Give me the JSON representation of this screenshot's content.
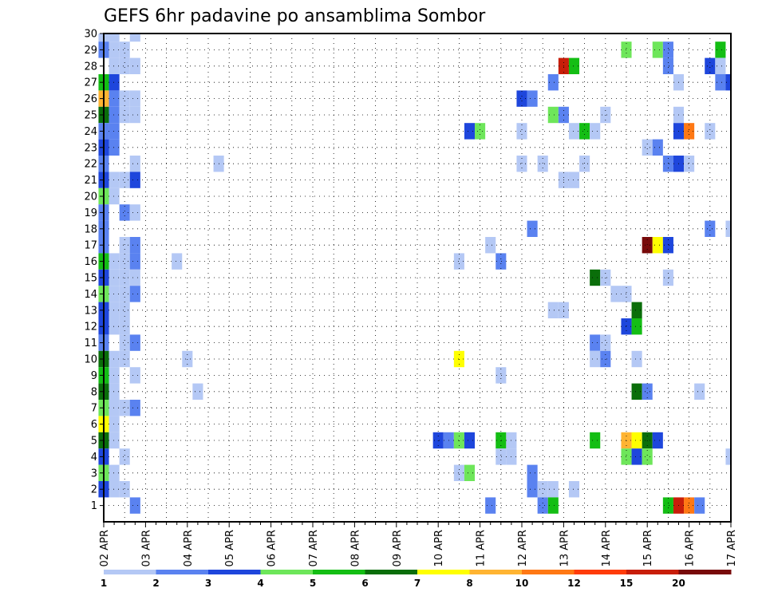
{
  "chart_data": {
    "type": "heatmap",
    "title": "GEFS 6hr padavine po ansamblima Sombor",
    "xlabel": "",
    "ylabel": "",
    "x_ticks": [
      "02 APR",
      "03 APR",
      "04 APR",
      "05 APR",
      "06 APR",
      "07 APR",
      "08 APR",
      "09 APR",
      "10 APR",
      "11 APR",
      "12 APR",
      "13 APR",
      "14 APR",
      "15 APR",
      "16 APR",
      "17 APR"
    ],
    "y_ticks": [
      "1",
      "2",
      "3",
      "4",
      "5",
      "6",
      "7",
      "8",
      "9",
      "10",
      "11",
      "12",
      "13",
      "14",
      "15",
      "16",
      "17",
      "18",
      "19",
      "20",
      "21",
      "22",
      "23",
      "24",
      "25",
      "26",
      "27",
      "28",
      "29",
      "30"
    ],
    "x_unit": "6-hour step from 02 APR",
    "xlim": [
      0,
      60
    ],
    "ylim": [
      0,
      30
    ],
    "grid": true,
    "colorbar": {
      "labels": [
        "1",
        "2",
        "3",
        "4",
        "5",
        "6",
        "7",
        "8",
        "10",
        "12",
        "15",
        "20"
      ],
      "colors": [
        "#b4c8f5",
        "#5a82f0",
        "#1e46dc",
        "#6ee65a",
        "#14be14",
        "#0a6e0a",
        "#ffff00",
        "#ffb432",
        "#ff7814",
        "#ff3c0a",
        "#c81e0a",
        "#780a0a"
      ]
    },
    "cells": [
      [
        0,
        30,
        1
      ],
      [
        1,
        30,
        1
      ],
      [
        3,
        30,
        1
      ],
      [
        0,
        29,
        2
      ],
      [
        1,
        29,
        1
      ],
      [
        2,
        29,
        1
      ],
      [
        50,
        29,
        4
      ],
      [
        53,
        29,
        4
      ],
      [
        54,
        29,
        2
      ],
      [
        59,
        29,
        5
      ],
      [
        1,
        28,
        1
      ],
      [
        2,
        28,
        1
      ],
      [
        3,
        28,
        1
      ],
      [
        44,
        28,
        11
      ],
      [
        45,
        28,
        5
      ],
      [
        54,
        28,
        2
      ],
      [
        58,
        28,
        3
      ],
      [
        59,
        28,
        1
      ],
      [
        0,
        27,
        5
      ],
      [
        1,
        27,
        3
      ],
      [
        43,
        27,
        2
      ],
      [
        55,
        27,
        1
      ],
      [
        59,
        27,
        2
      ],
      [
        60,
        27,
        3
      ],
      [
        0,
        26,
        8
      ],
      [
        1,
        26,
        2
      ],
      [
        2,
        26,
        1
      ],
      [
        3,
        26,
        1
      ],
      [
        40,
        26,
        3
      ],
      [
        41,
        26,
        2
      ],
      [
        0,
        25,
        6
      ],
      [
        1,
        25,
        2
      ],
      [
        2,
        25,
        1
      ],
      [
        3,
        25,
        1
      ],
      [
        43,
        25,
        4
      ],
      [
        44,
        25,
        2
      ],
      [
        48,
        25,
        1
      ],
      [
        55,
        25,
        1
      ],
      [
        0,
        24,
        2
      ],
      [
        1,
        24,
        2
      ],
      [
        35,
        24,
        3
      ],
      [
        36,
        24,
        4
      ],
      [
        40,
        24,
        1
      ],
      [
        45,
        24,
        1
      ],
      [
        46,
        24,
        5
      ],
      [
        47,
        24,
        1
      ],
      [
        55,
        24,
        3
      ],
      [
        56,
        24,
        9
      ],
      [
        58,
        24,
        1
      ],
      [
        0,
        23,
        3
      ],
      [
        1,
        23,
        2
      ],
      [
        52,
        23,
        1
      ],
      [
        53,
        23,
        2
      ],
      [
        0,
        22,
        2
      ],
      [
        3,
        22,
        1
      ],
      [
        11,
        22,
        1
      ],
      [
        40,
        22,
        1
      ],
      [
        42,
        22,
        1
      ],
      [
        46,
        22,
        1
      ],
      [
        54,
        22,
        2
      ],
      [
        55,
        22,
        3
      ],
      [
        56,
        22,
        1
      ],
      [
        0,
        21,
        3
      ],
      [
        1,
        21,
        1
      ],
      [
        2,
        21,
        1
      ],
      [
        3,
        21,
        3
      ],
      [
        44,
        21,
        1
      ],
      [
        45,
        21,
        1
      ],
      [
        0,
        20,
        4
      ],
      [
        1,
        20,
        1
      ],
      [
        0,
        19,
        2
      ],
      [
        2,
        19,
        2
      ],
      [
        3,
        19,
        1
      ],
      [
        0,
        18,
        2
      ],
      [
        41,
        18,
        2
      ],
      [
        58,
        18,
        2
      ],
      [
        60,
        18,
        1
      ],
      [
        0,
        17,
        2
      ],
      [
        2,
        17,
        1
      ],
      [
        3,
        17,
        2
      ],
      [
        37,
        17,
        1
      ],
      [
        52,
        17,
        12
      ],
      [
        53,
        17,
        7
      ],
      [
        54,
        17,
        3
      ],
      [
        0,
        16,
        5
      ],
      [
        1,
        16,
        1
      ],
      [
        2,
        16,
        1
      ],
      [
        3,
        16,
        2
      ],
      [
        7,
        16,
        1
      ],
      [
        34,
        16,
        1
      ],
      [
        38,
        16,
        2
      ],
      [
        0,
        15,
        3
      ],
      [
        1,
        15,
        1
      ],
      [
        2,
        15,
        1
      ],
      [
        3,
        15,
        1
      ],
      [
        47,
        15,
        6
      ],
      [
        48,
        15,
        1
      ],
      [
        54,
        15,
        1
      ],
      [
        0,
        14,
        4
      ],
      [
        1,
        14,
        1
      ],
      [
        2,
        14,
        1
      ],
      [
        3,
        14,
        2
      ],
      [
        49,
        14,
        1
      ],
      [
        50,
        14,
        1
      ],
      [
        0,
        13,
        3
      ],
      [
        1,
        13,
        1
      ],
      [
        2,
        13,
        1
      ],
      [
        43,
        13,
        1
      ],
      [
        44,
        13,
        1
      ],
      [
        51,
        13,
        6
      ],
      [
        0,
        12,
        3
      ],
      [
        1,
        12,
        1
      ],
      [
        2,
        12,
        1
      ],
      [
        50,
        12,
        3
      ],
      [
        51,
        12,
        5
      ],
      [
        0,
        11,
        2
      ],
      [
        2,
        11,
        1
      ],
      [
        3,
        11,
        2
      ],
      [
        47,
        11,
        2
      ],
      [
        48,
        11,
        1
      ],
      [
        0,
        10,
        6
      ],
      [
        1,
        10,
        1
      ],
      [
        2,
        10,
        1
      ],
      [
        8,
        10,
        1
      ],
      [
        34,
        10,
        7
      ],
      [
        47,
        10,
        1
      ],
      [
        48,
        10,
        2
      ],
      [
        51,
        10,
        1
      ],
      [
        0,
        9,
        5
      ],
      [
        1,
        9,
        1
      ],
      [
        3,
        9,
        1
      ],
      [
        38,
        9,
        1
      ],
      [
        0,
        8,
        6
      ],
      [
        1,
        8,
        1
      ],
      [
        9,
        8,
        1
      ],
      [
        51,
        8,
        6
      ],
      [
        52,
        8,
        2
      ],
      [
        57,
        8,
        1
      ],
      [
        0,
        7,
        4
      ],
      [
        1,
        7,
        1
      ],
      [
        2,
        7,
        1
      ],
      [
        3,
        7,
        2
      ],
      [
        0,
        6,
        7
      ],
      [
        1,
        6,
        1
      ],
      [
        0,
        5,
        6
      ],
      [
        1,
        5,
        1
      ],
      [
        32,
        5,
        3
      ],
      [
        33,
        5,
        2
      ],
      [
        34,
        5,
        4
      ],
      [
        35,
        5,
        3
      ],
      [
        38,
        5,
        5
      ],
      [
        39,
        5,
        1
      ],
      [
        47,
        5,
        5
      ],
      [
        50,
        5,
        8
      ],
      [
        51,
        5,
        7
      ],
      [
        52,
        5,
        6
      ],
      [
        53,
        5,
        3
      ],
      [
        0,
        4,
        3
      ],
      [
        2,
        4,
        1
      ],
      [
        38,
        4,
        1
      ],
      [
        39,
        4,
        1
      ],
      [
        50,
        4,
        4
      ],
      [
        51,
        4,
        3
      ],
      [
        52,
        4,
        4
      ],
      [
        60,
        4,
        1
      ],
      [
        0,
        3,
        4
      ],
      [
        1,
        3,
        1
      ],
      [
        34,
        3,
        1
      ],
      [
        35,
        3,
        4
      ],
      [
        41,
        3,
        2
      ],
      [
        0,
        2,
        3
      ],
      [
        1,
        2,
        1
      ],
      [
        2,
        2,
        1
      ],
      [
        41,
        2,
        2
      ],
      [
        42,
        2,
        1
      ],
      [
        43,
        2,
        1
      ],
      [
        45,
        2,
        1
      ],
      [
        3,
        1,
        2
      ],
      [
        37,
        1,
        2
      ],
      [
        42,
        1,
        2
      ],
      [
        43,
        1,
        5
      ],
      [
        54,
        1,
        5
      ],
      [
        55,
        1,
        11
      ],
      [
        56,
        1,
        9
      ],
      [
        57,
        1,
        2
      ]
    ]
  }
}
